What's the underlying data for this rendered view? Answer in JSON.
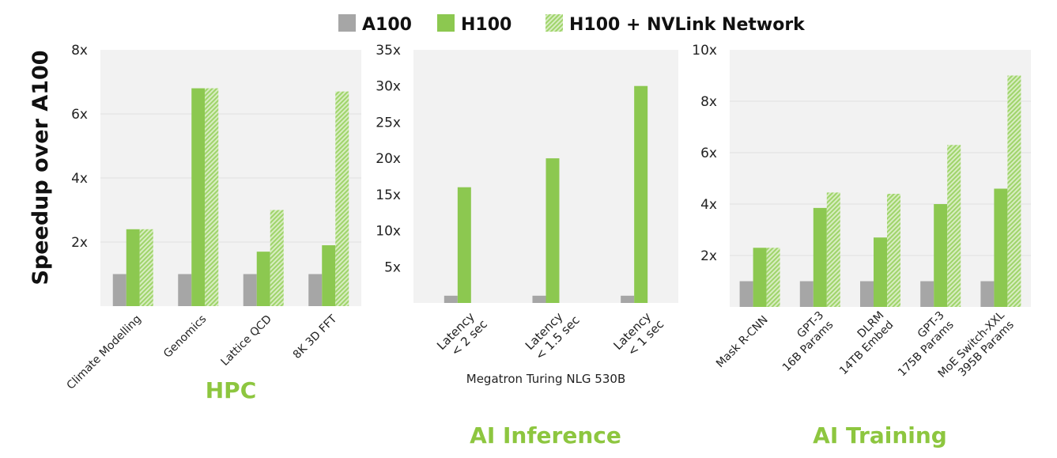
{
  "legend": {
    "position": "top-center",
    "items": [
      {
        "name": "A100",
        "style": "solid",
        "color": "#a6a6a6"
      },
      {
        "name": "H100",
        "style": "solid",
        "color": "#8cc850"
      },
      {
        "name": "H100 + NVLink Network",
        "style": "hatched",
        "color": "#a9d97b"
      }
    ]
  },
  "ylabel": "Speedup over A100",
  "chart_data": [
    {
      "type": "bar",
      "title": "HPC",
      "ylim": [
        0,
        8
      ],
      "yticks": [
        "2x",
        "4x",
        "6x",
        "8x"
      ],
      "ytick_values": [
        2,
        4,
        6,
        8
      ],
      "grid": true,
      "categories": [
        [
          "Climate Modelling"
        ],
        [
          "Genomics"
        ],
        [
          "Lattice QCD"
        ],
        [
          "8K 3D FFT"
        ]
      ],
      "series": [
        {
          "name": "A100",
          "values": [
            1,
            1,
            1,
            1
          ]
        },
        {
          "name": "H100",
          "values": [
            2.4,
            6.8,
            1.7,
            1.9
          ]
        },
        {
          "name": "H100 + NVLink Network",
          "values": [
            2.4,
            6.8,
            3.0,
            6.7
          ]
        }
      ]
    },
    {
      "type": "bar",
      "title": "AI Inference",
      "xlabel": "Megatron Turing NLG 530B",
      "ylim": [
        0,
        35
      ],
      "yticks": [
        "5x",
        "10x",
        "15x",
        "20x",
        "25x",
        "30x",
        "35x"
      ],
      "ytick_values": [
        5,
        10,
        15,
        20,
        25,
        30,
        35
      ],
      "grid": false,
      "categories": [
        [
          "Latency",
          "< 2 sec"
        ],
        [
          "Latency",
          "< 1.5 sec"
        ],
        [
          "Latency",
          "< 1 sec"
        ]
      ],
      "series": [
        {
          "name": "A100",
          "values": [
            1,
            1,
            1
          ]
        },
        {
          "name": "H100",
          "values": [
            16,
            20,
            30
          ]
        }
      ]
    },
    {
      "type": "bar",
      "title": "AI Training",
      "ylim": [
        0,
        10
      ],
      "yticks": [
        "2x",
        "4x",
        "6x",
        "8x",
        "10x"
      ],
      "ytick_values": [
        2,
        4,
        6,
        8,
        10
      ],
      "grid": true,
      "categories": [
        [
          "Mask R-CNN"
        ],
        [
          "GPT-3",
          "16B Params"
        ],
        [
          "DLRM",
          "14TB Embed"
        ],
        [
          "GPT-3",
          "175B Params"
        ],
        [
          "MoE Switch-XXL",
          "395B Params"
        ]
      ],
      "series": [
        {
          "name": "A100",
          "values": [
            1,
            1,
            1,
            1,
            1
          ]
        },
        {
          "name": "H100",
          "values": [
            2.3,
            3.85,
            2.7,
            4.0,
            4.6
          ]
        },
        {
          "name": "H100 + NVLink Network",
          "values": [
            2.3,
            4.45,
            4.4,
            6.3,
            9.0
          ]
        }
      ]
    }
  ],
  "colors": {
    "title": "#8dc63f",
    "panel": "#f2f2f2",
    "grid": "#e0e0e0",
    "hatch_bg": "#d8edc2",
    "hatch_stripe": "#9fd46a"
  }
}
